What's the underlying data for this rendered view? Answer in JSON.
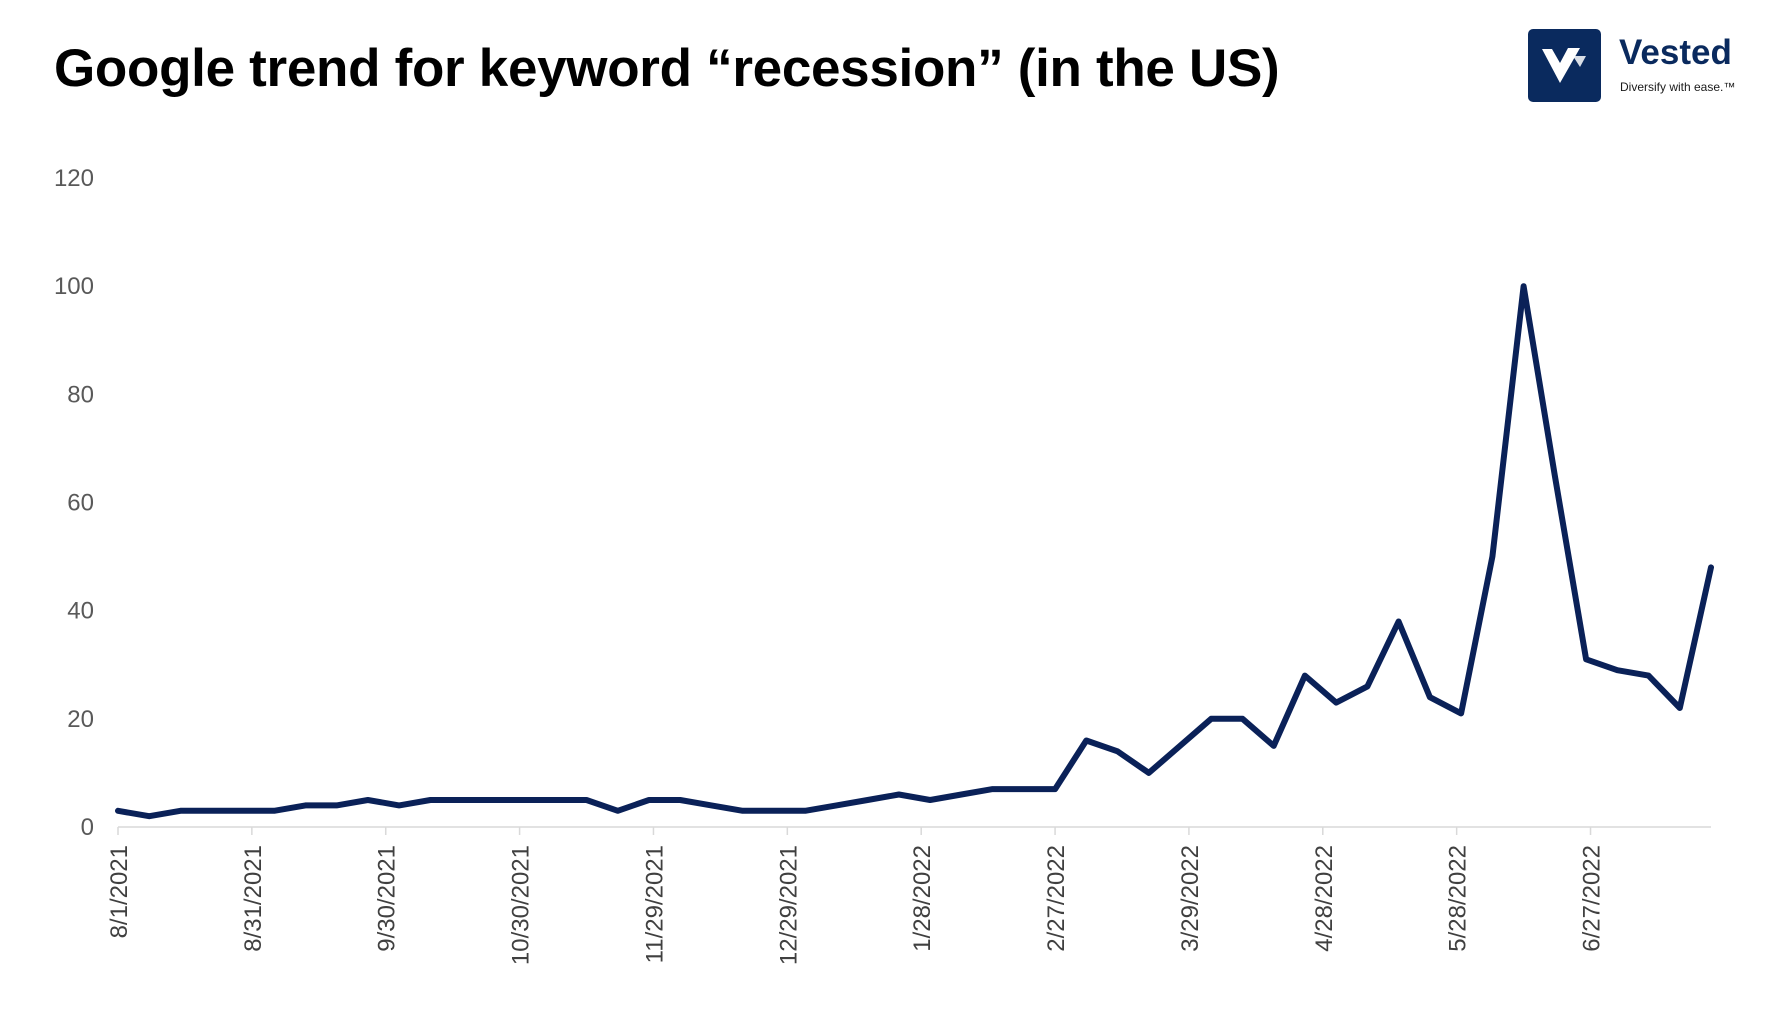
{
  "header": {
    "title": "Google trend for keyword “recession” (in the US)"
  },
  "logo": {
    "icon": "vested-v-logo-icon",
    "name": "Vested",
    "tagline": "Diversify with ease.™",
    "color": "#0a2a5e"
  },
  "chart_data": {
    "type": "line",
    "title": "Google trend for keyword “recession” (in the US)",
    "xlabel": "",
    "ylabel": "",
    "ylim": [
      0,
      120
    ],
    "yticks": [
      0,
      20,
      40,
      60,
      80,
      100,
      120
    ],
    "grid": false,
    "line_color": "#0a2158",
    "x_tick_labels": [
      "8/1/2021",
      "8/31/2021",
      "9/30/2021",
      "10/30/2021",
      "11/29/2021",
      "12/29/2021",
      "1/28/2022",
      "2/27/2022",
      "3/29/2022",
      "4/28/2022",
      "5/28/2022",
      "6/27/2022"
    ],
    "x": [
      "8/1/2021",
      "8/8/2021",
      "8/15/2021",
      "8/22/2021",
      "8/29/2021",
      "9/5/2021",
      "9/12/2021",
      "9/19/2021",
      "9/26/2021",
      "10/3/2021",
      "10/10/2021",
      "10/17/2021",
      "10/24/2021",
      "10/31/2021",
      "11/7/2021",
      "11/14/2021",
      "11/21/2021",
      "11/28/2021",
      "12/5/2021",
      "12/12/2021",
      "12/19/2021",
      "12/26/2021",
      "1/2/2022",
      "1/9/2022",
      "1/16/2022",
      "1/23/2022",
      "1/30/2022",
      "2/6/2022",
      "2/13/2022",
      "2/20/2022",
      "2/27/2022",
      "3/6/2022",
      "3/13/2022",
      "3/20/2022",
      "3/27/2022",
      "4/3/2022",
      "4/10/2022",
      "4/17/2022",
      "4/24/2022",
      "5/1/2022",
      "5/8/2022",
      "5/15/2022",
      "5/22/2022",
      "5/29/2022",
      "6/5/2022",
      "6/12/2022",
      "6/19/2022",
      "6/26/2022",
      "7/3/2022",
      "7/10/2022",
      "7/17/2022",
      "7/24/2022"
    ],
    "series": [
      {
        "values": [
          3,
          2,
          3,
          3,
          3,
          3,
          4,
          4,
          5,
          4,
          5,
          5,
          5,
          5,
          5,
          5,
          3,
          5,
          5,
          4,
          3,
          3,
          3,
          4,
          5,
          6,
          5,
          6,
          7,
          7,
          7,
          16,
          14,
          10,
          15,
          20,
          20,
          15,
          28,
          23,
          26,
          38,
          24,
          21,
          50,
          100,
          65,
          31,
          29,
          28,
          22,
          48
        ]
      }
    ]
  }
}
